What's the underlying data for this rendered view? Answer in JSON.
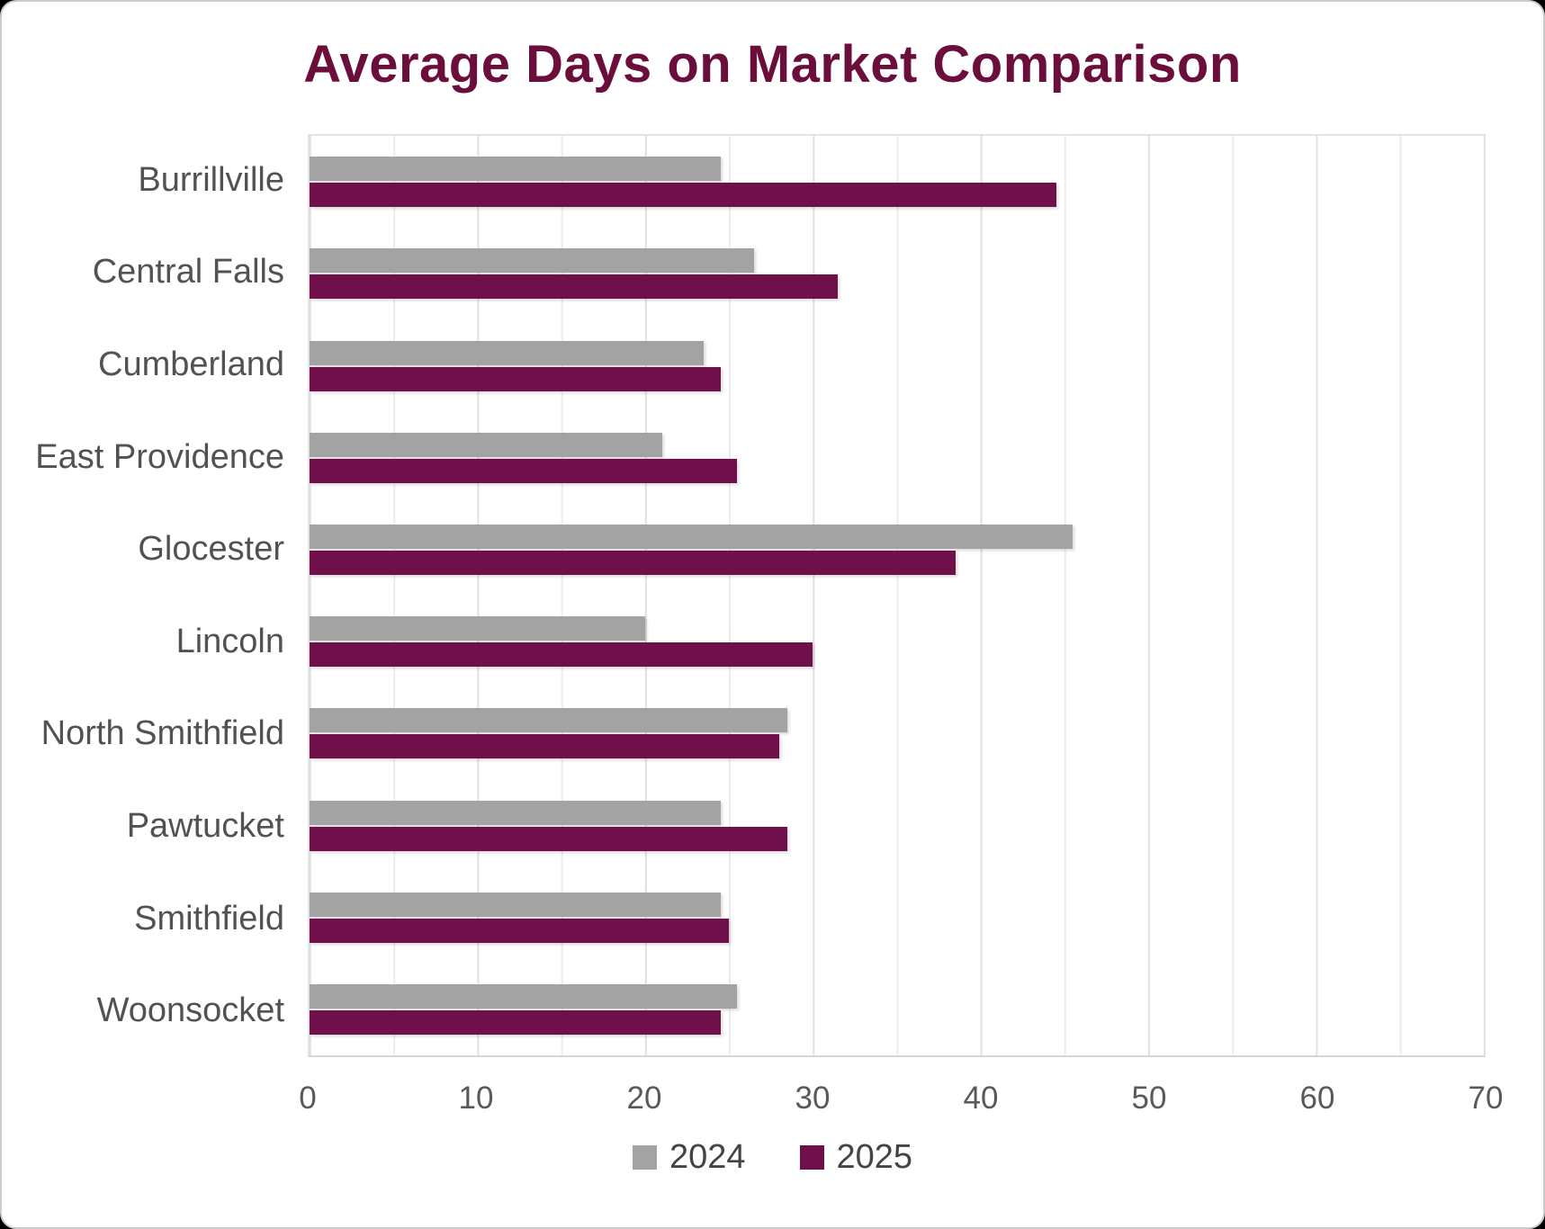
{
  "chart_data": {
    "type": "bar",
    "orientation": "horizontal",
    "title": "Average Days on Market Comparison",
    "categories": [
      "Burrillville",
      "Central Falls",
      "Cumberland",
      "East Providence",
      "Glocester",
      "Lincoln",
      "North Smithfield",
      "Pawtucket",
      "Smithfield",
      "Woonsocket"
    ],
    "series": [
      {
        "name": "2024",
        "color": "#A3A3A3",
        "values": [
          24.5,
          26.5,
          23.5,
          21,
          45.5,
          20,
          28.5,
          24.5,
          24.5,
          25.5
        ]
      },
      {
        "name": "2025",
        "color": "#70104A",
        "values": [
          44.5,
          31.5,
          24.5,
          25.5,
          38.5,
          30,
          28,
          28.5,
          25,
          24.5
        ]
      }
    ],
    "xlabel": "",
    "ylabel": "",
    "xlim": [
      0,
      70
    ],
    "x_ticks": [
      0,
      10,
      20,
      30,
      40,
      50,
      60,
      70
    ],
    "minor_grid_step": 5,
    "grid": true,
    "legend_position": "bottom"
  },
  "colors": {
    "title-color": "#6B0E3C",
    "bar-2024": "#A3A3A3",
    "bar-2025": "#70104A",
    "axis-text": "#595959",
    "category-text": "#525252",
    "legend-text": "#444444",
    "grid-minor": "#ececec",
    "grid-major": "#e2e2e2",
    "plot-border": "#e3e3e3",
    "axis-line": "#d6d6d6",
    "frame-border": "#cbcbcb",
    "frame-bg": "#ffffff",
    "page-bg": "#000000"
  }
}
